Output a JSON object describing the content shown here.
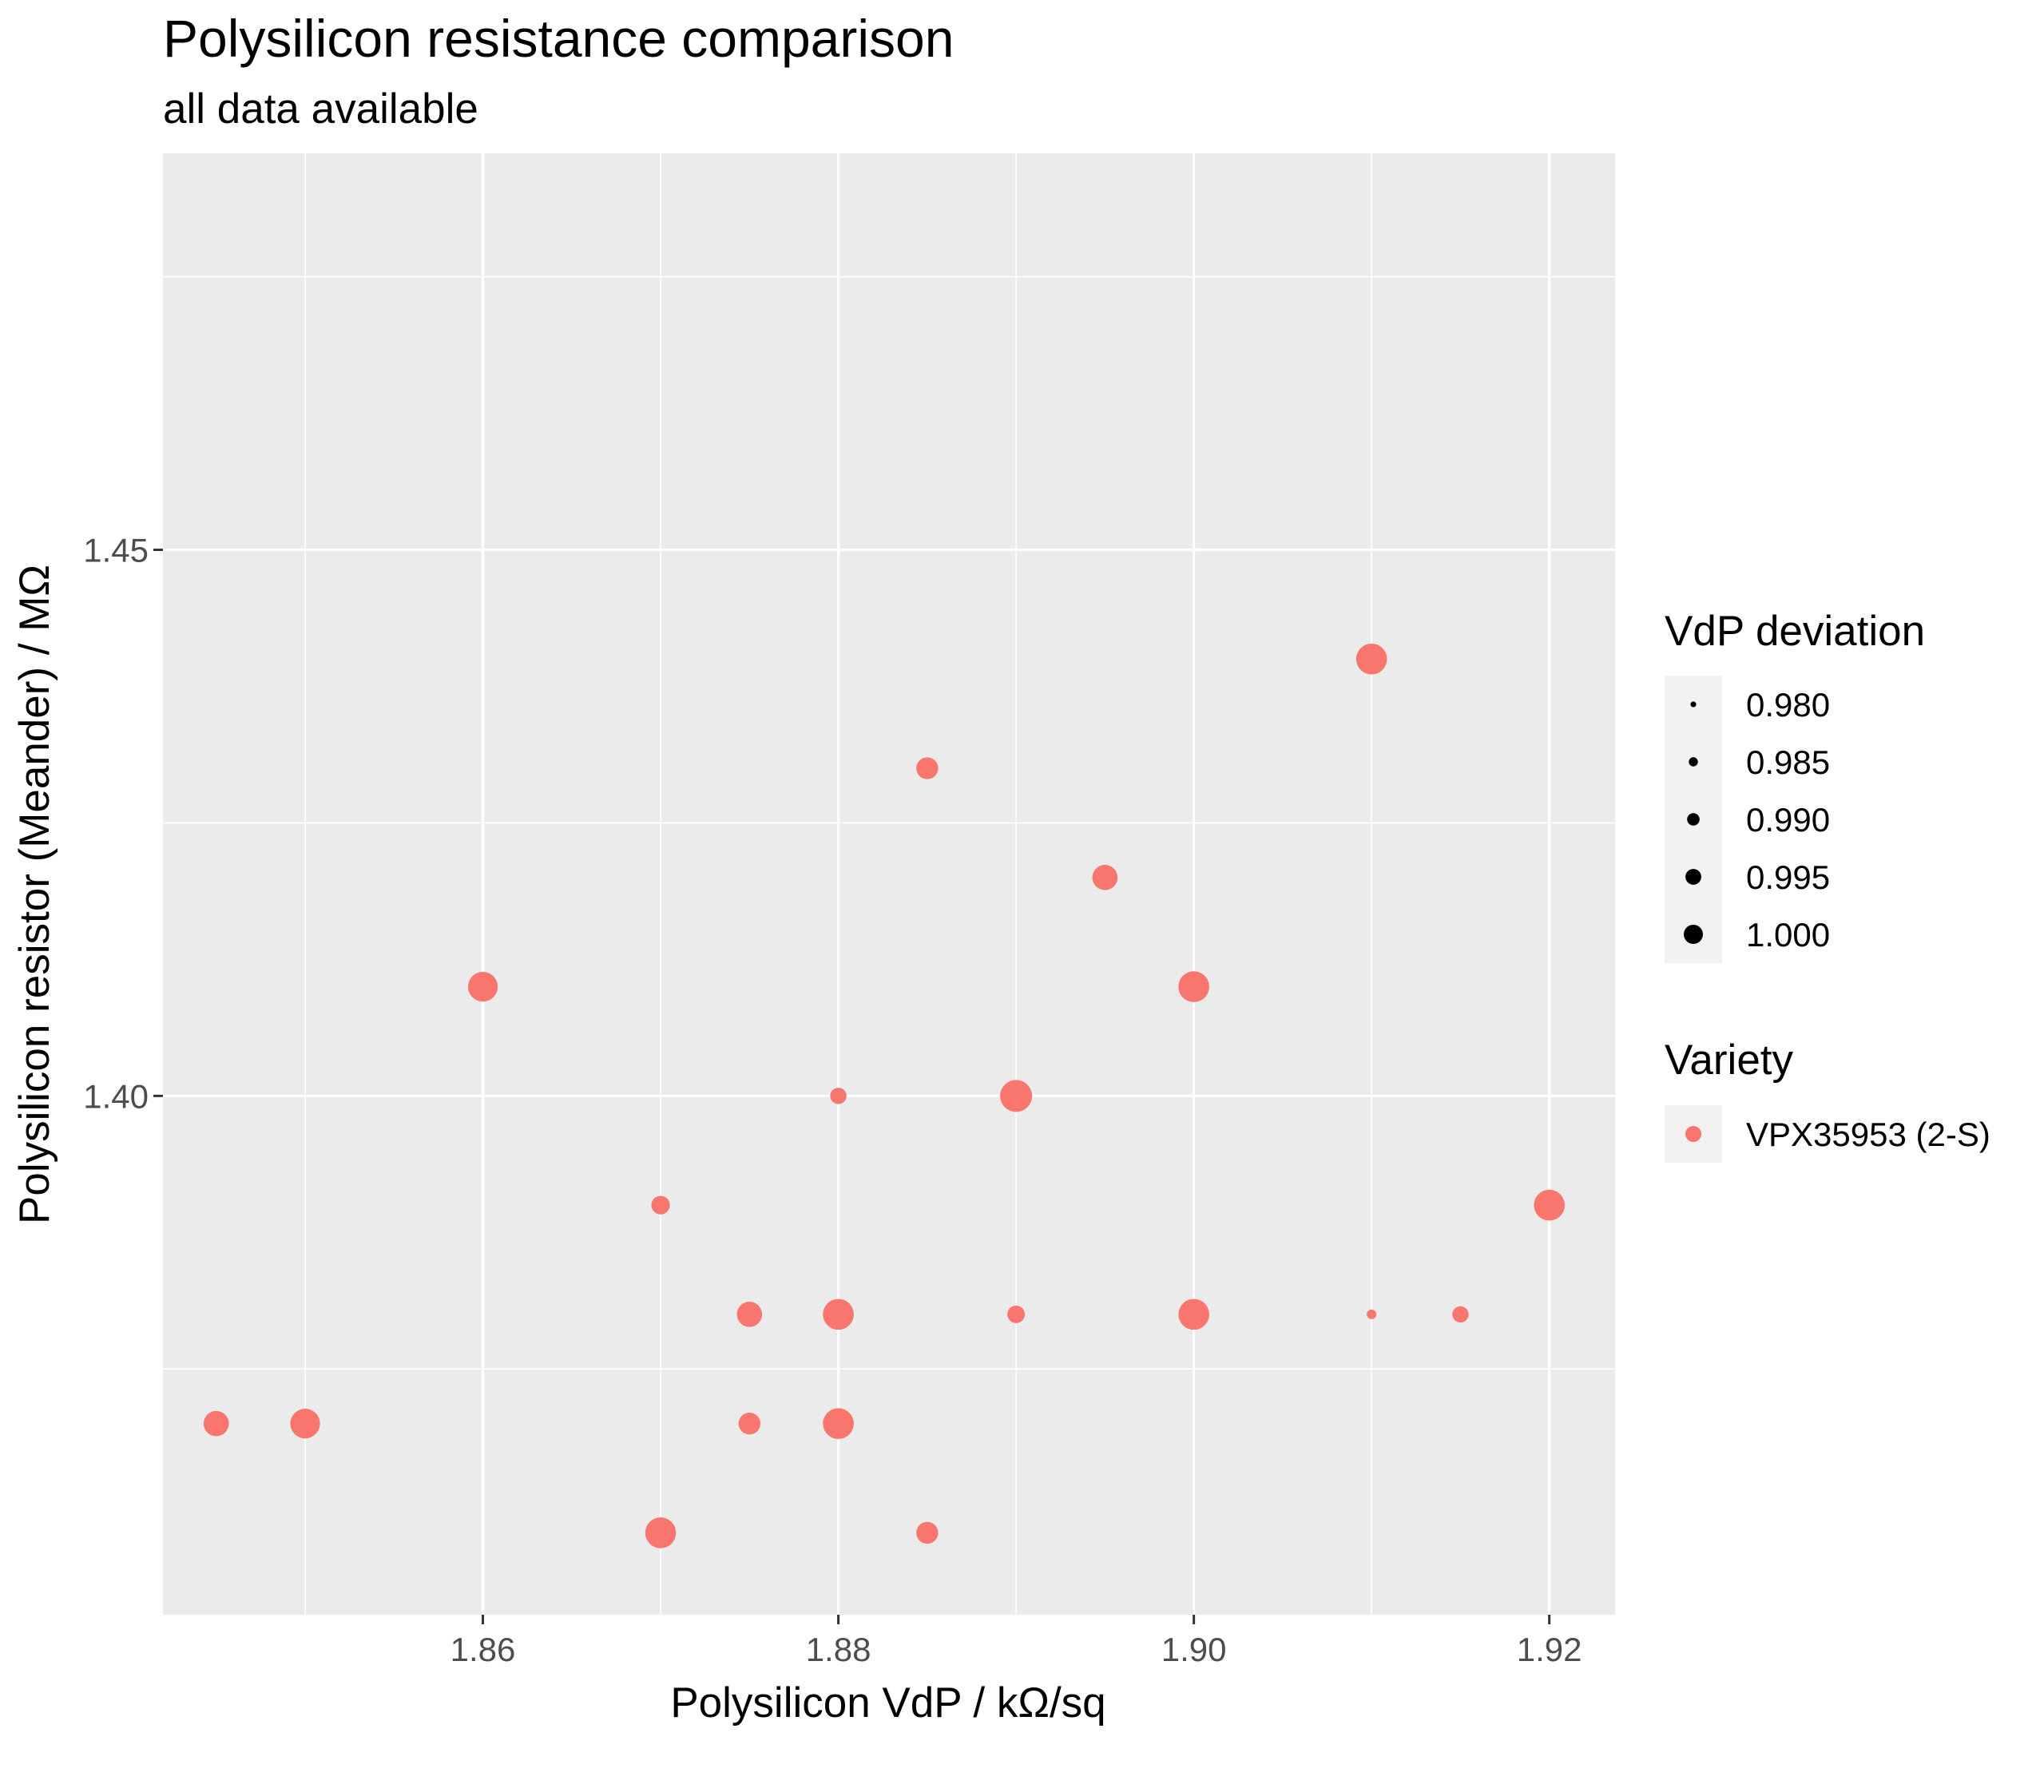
{
  "chart_data": {
    "type": "scatter",
    "title": "Polysilicon resistance comparison",
    "subtitle": "all data available",
    "xlabel": "Polysilicon VdP / kΩ/sq",
    "ylabel": "Polysilicon resistor (Meander) / MΩ",
    "xlim": [
      1.842,
      1.9237
    ],
    "ylim": [
      1.3525,
      1.4863
    ],
    "x_ticks": [
      1.86,
      1.88,
      1.9,
      1.92
    ],
    "x_tick_labels": [
      "1.86",
      "1.88",
      "1.90",
      "1.92"
    ],
    "x_minor_ticks": [
      1.85,
      1.87,
      1.89,
      1.91
    ],
    "y_ticks": [
      1.4,
      1.45
    ],
    "y_tick_labels": [
      "1.40",
      "1.45"
    ],
    "y_minor_ticks": [
      1.375,
      1.425,
      1.475
    ],
    "grid": true,
    "legend_position": "right",
    "legends": {
      "size": {
        "title": "VdP deviation",
        "values": [
          0.98,
          0.985,
          0.99,
          0.995,
          1.0
        ],
        "labels": [
          "0.980",
          "0.985",
          "0.990",
          "0.995",
          "1.000"
        ]
      },
      "color": {
        "title": "Variety",
        "labels": [
          "VPX35953 (2-S)"
        ],
        "colors": [
          "#F8766D"
        ]
      }
    },
    "series": [
      {
        "name": "VPX35953 (2-S)",
        "color": "#F8766D",
        "points": [
          {
            "x": 1.845,
            "y": 1.37,
            "size": 0.994
          },
          {
            "x": 1.85,
            "y": 1.37,
            "size": 0.998
          },
          {
            "x": 1.86,
            "y": 1.41,
            "size": 0.998
          },
          {
            "x": 1.87,
            "y": 1.39,
            "size": 0.988
          },
          {
            "x": 1.87,
            "y": 1.36,
            "size": 0.999
          },
          {
            "x": 1.875,
            "y": 1.38,
            "size": 0.994
          },
          {
            "x": 1.875,
            "y": 1.37,
            "size": 0.991
          },
          {
            "x": 1.88,
            "y": 1.4,
            "size": 0.986
          },
          {
            "x": 1.88,
            "y": 1.38,
            "size": 0.999
          },
          {
            "x": 1.88,
            "y": 1.37,
            "size": 0.999
          },
          {
            "x": 1.885,
            "y": 1.43,
            "size": 0.991
          },
          {
            "x": 1.885,
            "y": 1.36,
            "size": 0.991
          },
          {
            "x": 1.89,
            "y": 1.4,
            "size": 1.0
          },
          {
            "x": 1.89,
            "y": 1.38,
            "size": 0.987
          },
          {
            "x": 1.895,
            "y": 1.42,
            "size": 0.994
          },
          {
            "x": 1.9,
            "y": 1.41,
            "size": 0.999
          },
          {
            "x": 1.9,
            "y": 1.38,
            "size": 0.999
          },
          {
            "x": 1.91,
            "y": 1.44,
            "size": 0.999
          },
          {
            "x": 1.91,
            "y": 1.38,
            "size": 0.98
          },
          {
            "x": 1.915,
            "y": 1.38,
            "size": 0.986
          },
          {
            "x": 1.92,
            "y": 1.39,
            "size": 0.999
          }
        ]
      }
    ]
  }
}
